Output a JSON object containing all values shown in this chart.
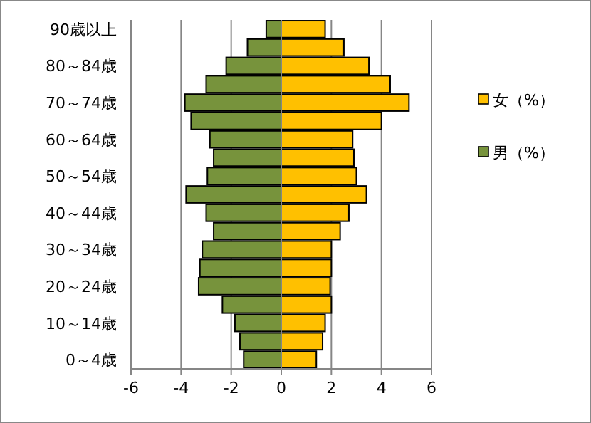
{
  "chart_data": {
    "type": "bar",
    "orientation": "horizontal",
    "categories": [
      "90歳以上",
      null,
      "80～84歳",
      null,
      "70～74歳",
      null,
      "60～64歳",
      null,
      "50～54歳",
      null,
      "40～44歳",
      null,
      "30～34歳",
      null,
      "20～24歳",
      null,
      "10～14歳",
      null,
      "0～4歳"
    ],
    "series": [
      {
        "name": "女（%）",
        "color": "#ffc000",
        "values": [
          1.75,
          2.5,
          3.5,
          4.35,
          5.1,
          4.0,
          2.85,
          2.9,
          3.0,
          3.4,
          2.7,
          2.35,
          2.0,
          2.0,
          1.95,
          2.0,
          1.75,
          1.65,
          1.4
        ]
      },
      {
        "name": "男（%）",
        "color": "#77933c",
        "values": [
          -0.6,
          -1.35,
          -2.2,
          -3.0,
          -3.85,
          -3.6,
          -2.85,
          -2.7,
          -2.95,
          -3.8,
          -3.0,
          -2.7,
          -3.15,
          -3.25,
          -3.3,
          -2.35,
          -1.85,
          -1.65,
          -1.5
        ]
      }
    ],
    "xlim": [
      -6,
      6
    ],
    "xticks": [
      -6,
      -4,
      -2,
      0,
      2,
      4,
      6
    ],
    "grid": "x",
    "legend": "right",
    "stacked": true
  }
}
